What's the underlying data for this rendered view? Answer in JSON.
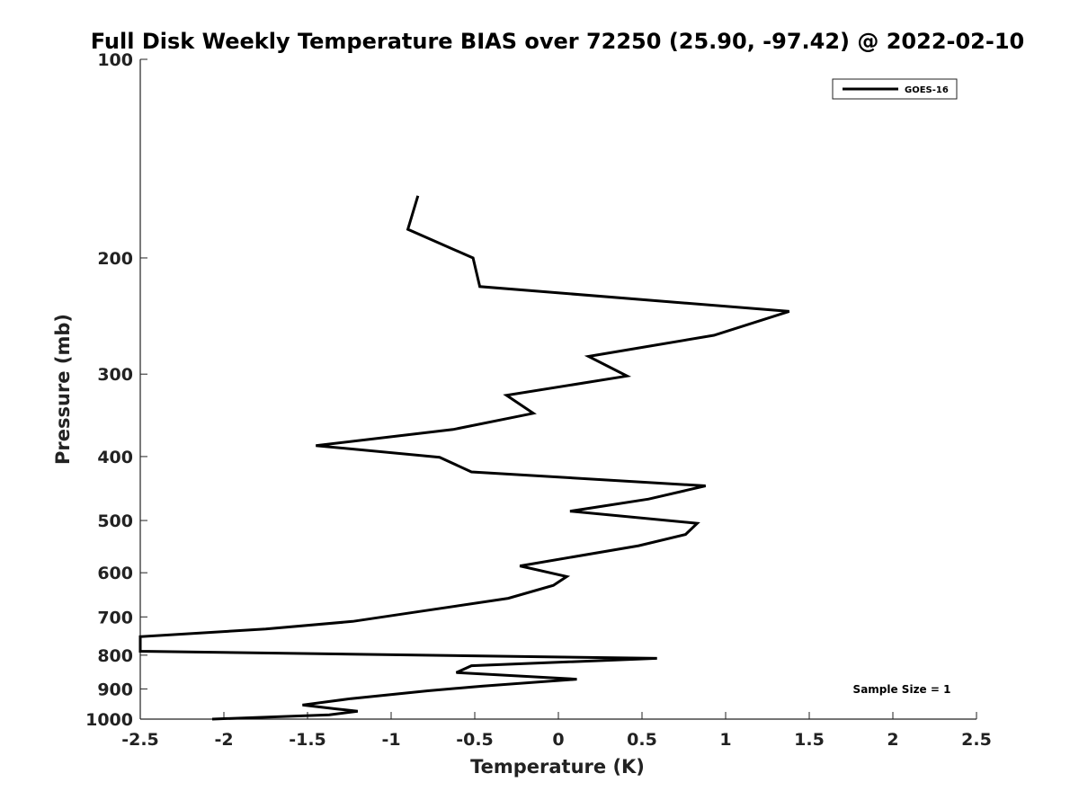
{
  "chart_data": {
    "type": "line",
    "title": "Full Disk Weekly Temperature BIAS over 72250 (25.90, -97.42) @ 2022-02-10",
    "xlabel": "Temperature (K)",
    "ylabel": "Pressure (mb)",
    "xlim": [
      -2.5,
      2.5
    ],
    "ylim": [
      100,
      1000
    ],
    "y_scale": "log",
    "y_reversed": true,
    "x_ticks": [
      "-2.5",
      "-2",
      "-1.5",
      "-1",
      "-0.5",
      "0",
      "0.5",
      "1",
      "1.5",
      "2",
      "2.5"
    ],
    "x_tick_values": [
      -2.5,
      -2,
      -1.5,
      -1,
      -0.5,
      0,
      0.5,
      1,
      1.5,
      2,
      2.5
    ],
    "y_ticks": [
      "100",
      "200",
      "300",
      "400",
      "500",
      "600",
      "700",
      "800",
      "900",
      "1000"
    ],
    "y_tick_values": [
      100,
      200,
      300,
      400,
      500,
      600,
      700,
      800,
      900,
      1000
    ],
    "legend_position": "top-right",
    "grid": false,
    "annotation": "Sample Size = 1",
    "series": [
      {
        "name": "GOES-16",
        "color": "#000000",
        "points": [
          {
            "x": -0.84,
            "y": 161
          },
          {
            "x": -0.9,
            "y": 181
          },
          {
            "x": -0.51,
            "y": 200
          },
          {
            "x": -0.47,
            "y": 221
          },
          {
            "x": 1.38,
            "y": 241
          },
          {
            "x": 0.93,
            "y": 262
          },
          {
            "x": 0.18,
            "y": 282
          },
          {
            "x": 0.41,
            "y": 302
          },
          {
            "x": -0.31,
            "y": 323
          },
          {
            "x": -0.15,
            "y": 344
          },
          {
            "x": -0.63,
            "y": 364
          },
          {
            "x": -1.45,
            "y": 385
          },
          {
            "x": -0.71,
            "y": 401
          },
          {
            "x": -0.52,
            "y": 422
          },
          {
            "x": 0.88,
            "y": 443
          },
          {
            "x": 0.54,
            "y": 464
          },
          {
            "x": 0.07,
            "y": 484
          },
          {
            "x": 0.83,
            "y": 505
          },
          {
            "x": 0.76,
            "y": 525
          },
          {
            "x": 0.48,
            "y": 546
          },
          {
            "x": -0.23,
            "y": 586
          },
          {
            "x": 0.05,
            "y": 608
          },
          {
            "x": -0.03,
            "y": 627
          },
          {
            "x": -0.3,
            "y": 656
          },
          {
            "x": -0.9,
            "y": 691
          },
          {
            "x": -1.23,
            "y": 711
          },
          {
            "x": -1.75,
            "y": 730
          },
          {
            "x": -2.5,
            "y": 750
          },
          {
            "x": -2.5,
            "y": 789
          },
          {
            "x": 0.59,
            "y": 809
          },
          {
            "x": -0.52,
            "y": 830
          },
          {
            "x": -0.61,
            "y": 850
          },
          {
            "x": 0.11,
            "y": 870
          },
          {
            "x": -0.45,
            "y": 891
          },
          {
            "x": -0.78,
            "y": 906
          },
          {
            "x": -1.24,
            "y": 931
          },
          {
            "x": -1.53,
            "y": 952
          },
          {
            "x": -1.33,
            "y": 965
          },
          {
            "x": -1.2,
            "y": 973
          },
          {
            "x": -1.37,
            "y": 985
          },
          {
            "x": -2.07,
            "y": 1000
          }
        ]
      }
    ]
  }
}
